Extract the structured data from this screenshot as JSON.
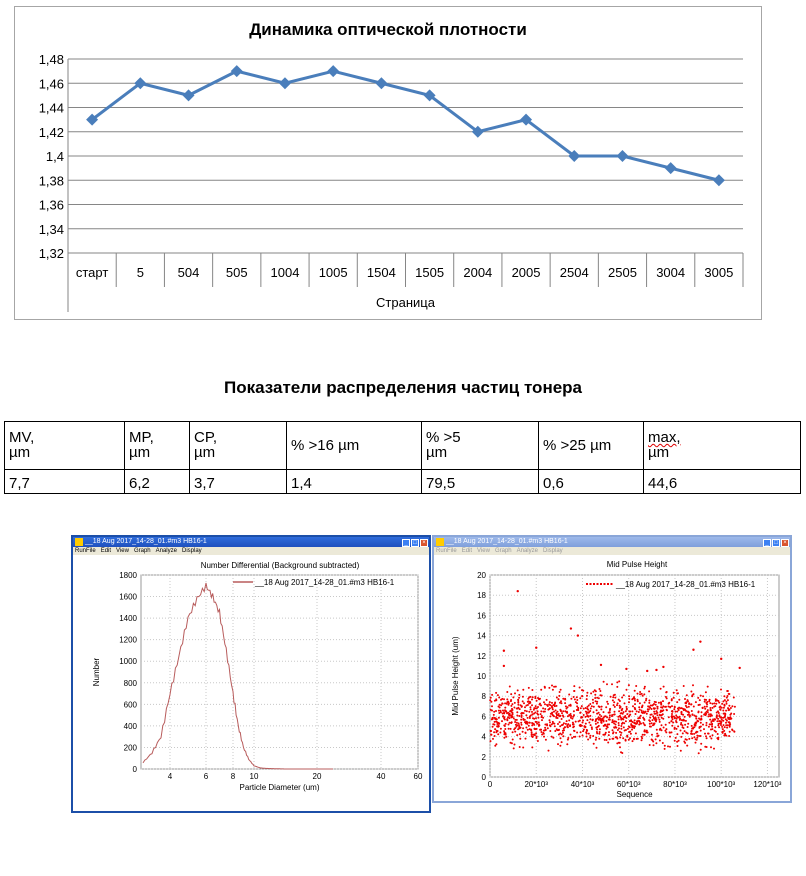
{
  "chart_data": [
    {
      "type": "line",
      "title": "Динамика оптической плотности",
      "xlabel": "Страница",
      "ylabel": "",
      "categories": [
        "старт",
        "5",
        "504",
        "505",
        "1004",
        "1005",
        "1504",
        "1505",
        "2004",
        "2005",
        "2504",
        "2505",
        "3004",
        "3005"
      ],
      "values": [
        1.43,
        1.46,
        1.45,
        1.47,
        1.46,
        1.47,
        1.46,
        1.45,
        1.42,
        1.43,
        1.4,
        1.4,
        1.39,
        1.38
      ],
      "ylim": [
        1.32,
        1.48
      ],
      "yticks": [
        "1,32",
        "1,34",
        "1,36",
        "1,38",
        "1,4",
        "1,42",
        "1,44",
        "1,46",
        "1,48"
      ],
      "grid": true,
      "color": "#4a7ebb",
      "marker": "diamond"
    },
    {
      "type": "area",
      "title": "Number Differential  (Background subtracted)",
      "xlabel": "Particle Diameter (um)",
      "ylabel": "Number",
      "legend": "__18 Aug 2017_14-28_01.#m3  HB16-1",
      "xticks": [
        "4",
        "6",
        "8",
        "10",
        "20",
        "40",
        "60"
      ],
      "yticks": [
        "0",
        "200",
        "400",
        "600",
        "800",
        "1000",
        "1200",
        "1400",
        "1600",
        "1800"
      ],
      "ylim": [
        0,
        1800
      ],
      "x": [
        2.5,
        3,
        3.5,
        4,
        4.5,
        5,
        5.5,
        6,
        6.5,
        7,
        7.5,
        8,
        8.5,
        9,
        9.5,
        10,
        11,
        12,
        15
      ],
      "y": [
        60,
        150,
        300,
        700,
        1050,
        1400,
        1580,
        1700,
        1600,
        1450,
        1100,
        700,
        400,
        200,
        90,
        30,
        10,
        5,
        0
      ],
      "color": "#b85c5c"
    },
    {
      "type": "scatter",
      "title": "Mid Pulse Height",
      "xlabel": "Sequence",
      "ylabel": "Mid Pulse Height (um)",
      "legend": "__18 Aug 2017_14-28_01.#m3  HB16-1",
      "xticks": [
        "0",
        "20*10³",
        "40*10³",
        "60*10³",
        "80*10³",
        "100*10³",
        "120*10³"
      ],
      "yticks": [
        "0",
        "2",
        "4",
        "6",
        "8",
        "10",
        "12",
        "14",
        "16",
        "18",
        "20"
      ],
      "xlim": [
        0,
        125000
      ],
      "ylim": [
        0,
        20
      ],
      "x": [
        12000,
        35000,
        38000,
        6000,
        20000,
        91000,
        88000,
        100000,
        6000,
        48000,
        75000,
        108000,
        59000,
        72000,
        68000
      ],
      "y": [
        18.4,
        14.7,
        14.0,
        12.5,
        12.8,
        13.4,
        12.6,
        11.7,
        11.0,
        11.1,
        10.9,
        10.8,
        10.7,
        10.6,
        10.5
      ],
      "color": "#ee0000"
    }
  ],
  "table": {
    "title": "Показатели распределения частиц тонера",
    "headers": [
      [
        "MV,",
        " µm"
      ],
      [
        "MP,",
        " µm"
      ],
      [
        "CP,",
        " µm"
      ],
      [
        "% >16  µm",
        ""
      ],
      [
        "% >5",
        " µm"
      ],
      [
        "% >25  µm",
        ""
      ],
      [
        "max,",
        " µm"
      ]
    ],
    "values": [
      "7,7",
      "6,2",
      "3,7",
      "1,4",
      "79,5",
      "0,6",
      "44,6"
    ]
  },
  "windows": {
    "left": {
      "title": "__18 Aug 2017_14-28_01.#m3  HB16-1",
      "menu": [
        "RunFile",
        "Edit",
        "View",
        "Graph",
        "Analyze",
        "Display"
      ]
    },
    "right": {
      "title": "__18 Aug 2017_14-28_01.#m3  HB16-1",
      "menu": [
        "RunFile",
        "Edit",
        "View",
        "Graph",
        "Analyze",
        "Display"
      ]
    }
  }
}
